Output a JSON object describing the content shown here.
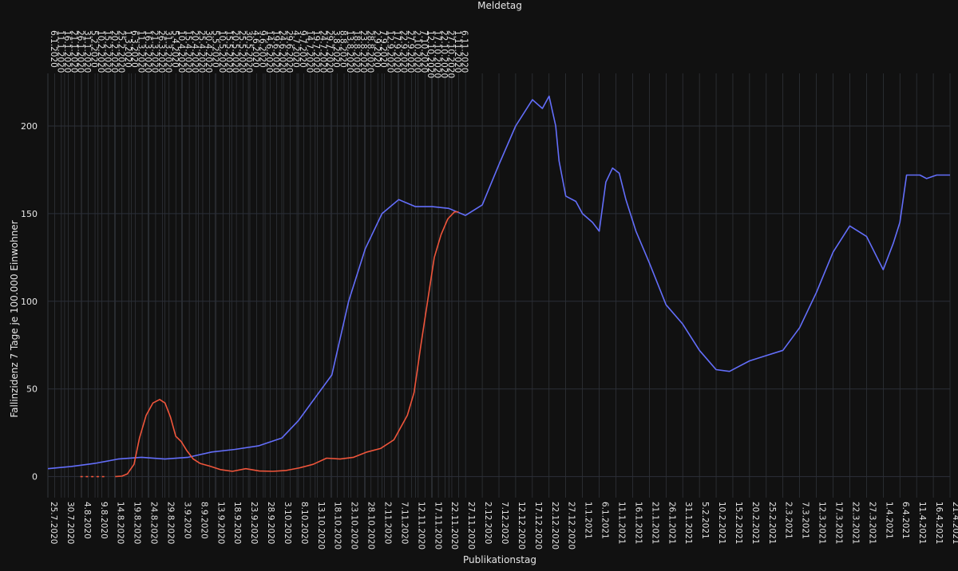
{
  "chart_data": {
    "type": "line",
    "title": "",
    "xlabel": "Publikationstag",
    "x2label": "Meldetag",
    "ylabel": "Fallinzidenz 7 Tage je 100.000 Einwohner",
    "ylim": [
      -12,
      230
    ],
    "yticks": [
      0,
      50,
      100,
      150,
      200
    ],
    "grid": true,
    "legend": "none",
    "background": "#111111",
    "x_bottom": {
      "start": "2020-07-25",
      "end": "2021-04-21",
      "ticks": [
        "25.7.2020",
        "30.7.2020",
        "4.8.2020",
        "9.8.2020",
        "14.8.2020",
        "19.8.2020",
        "24.8.2020",
        "29.8.2020",
        "3.9.2020",
        "8.9.2020",
        "13.9.2020",
        "18.9.2020",
        "23.9.2020",
        "28.9.2020",
        "3.10.2020",
        "8.10.2020",
        "13.10.2020",
        "18.10.2020",
        "23.10.2020",
        "28.10.2020",
        "2.11.2020",
        "7.11.2020",
        "12.11.2020",
        "17.11.2020",
        "22.11.2020",
        "27.11.2020",
        "2.12.2020",
        "7.12.2020",
        "12.12.2020",
        "17.12.2020",
        "22.12.2020",
        "27.12.2020",
        "1.1.2021",
        "6.1.2021",
        "11.1.2021",
        "16.1.2021",
        "21.1.2021",
        "26.1.2021",
        "31.1.2021",
        "5.2.2021",
        "10.2.2021",
        "15.2.2021",
        "20.2.2021",
        "25.2.2021",
        "2.3.2021",
        "7.3.2021",
        "12.3.2021",
        "17.3.2021",
        "22.3.2021",
        "27.3.2021",
        "1.4.2021",
        "6.4.2021",
        "11.4.2021",
        "16.4.2021",
        "21.4.2021"
      ]
    },
    "x_top": {
      "start": "2020-01-06",
      "end": "2021-11-06",
      "ticks": [
        "6.1.2020",
        "11.1.2020",
        "16.1.2020",
        "21.1.2020",
        "26.1.2020",
        "31.1.2020",
        "5.2.2020",
        "10.2.2020",
        "15.2.2020",
        "20.2.2020",
        "25.2.2020",
        "1.3.2020",
        "6.3.2020",
        "11.3.2020",
        "16.3.2020",
        "21.3.2020",
        "26.3.2020",
        "31.3.2020",
        "5.4.2020",
        "10.4.2020",
        "15.4.2020",
        "20.4.2020",
        "25.4.2020",
        "30.4.2020",
        "5.5.2020",
        "10.5.2020",
        "15.5.2020",
        "20.5.2020",
        "25.5.2020",
        "30.5.2020",
        "4.6.2020",
        "9.6.2020",
        "14.6.2020",
        "19.6.2020",
        "24.6.2020",
        "29.6.2020",
        "4.7.2020",
        "9.7.2020",
        "14.7.2020",
        "19.7.2020",
        "24.7.2020",
        "29.7.2020",
        "3.8.2020",
        "8.8.2020",
        "13.8.2020",
        "18.8.2020",
        "23.8.2020",
        "28.8.2020",
        "2.9.2020",
        "7.9.2020",
        "12.9.2020",
        "17.9.2020",
        "22.9.2020",
        "27.9.2020",
        "2.10.2020",
        "7.10.2020",
        "12.10.2020",
        "17.10.2020",
        "22.10.2020",
        "27.10.2020",
        "1.11.2020",
        "6.11.2020"
      ]
    },
    "series": [
      {
        "name": "",
        "axis": "bottom",
        "color": "#636efa",
        "x": [
          "2020-07-25",
          "2020-08-01",
          "2020-08-08",
          "2020-08-15",
          "2020-08-22",
          "2020-08-29",
          "2020-09-05",
          "2020-09-12",
          "2020-09-19",
          "2020-09-26",
          "2020-10-03",
          "2020-10-08",
          "2020-10-13",
          "2020-10-18",
          "2020-10-23",
          "2020-10-28",
          "2020-11-02",
          "2020-11-07",
          "2020-11-12",
          "2020-11-17",
          "2020-11-22",
          "2020-11-27",
          "2020-12-02",
          "2020-12-07",
          "2020-12-12",
          "2020-12-17",
          "2020-12-20",
          "2020-12-22",
          "2020-12-24",
          "2020-12-25",
          "2020-12-27",
          "2020-12-30",
          "2021-01-01",
          "2021-01-04",
          "2021-01-06",
          "2021-01-08",
          "2021-01-10",
          "2021-01-12",
          "2021-01-14",
          "2021-01-17",
          "2021-01-21",
          "2021-01-26",
          "2021-01-31",
          "2021-02-05",
          "2021-02-10",
          "2021-02-14",
          "2021-02-17",
          "2021-02-20",
          "2021-02-25",
          "2021-03-02",
          "2021-03-07",
          "2021-03-12",
          "2021-03-17",
          "2021-03-22",
          "2021-03-27",
          "2021-04-01",
          "2021-04-04",
          "2021-04-06",
          "2021-04-08",
          "2021-04-12",
          "2021-04-14",
          "2021-04-17",
          "2021-04-19",
          "2021-04-20",
          "2021-04-21"
        ],
        "y": [
          4.5,
          5.8,
          7.5,
          10.0,
          11.0,
          10.0,
          11.0,
          14.0,
          15.5,
          17.5,
          22.0,
          32.0,
          45.0,
          58.0,
          100.0,
          130.0,
          150.0,
          158.0,
          154.0,
          154.0,
          153.0,
          149.0,
          155.0,
          178.0,
          200.0,
          215.0,
          210.0,
          217.0,
          200.0,
          180.0,
          160.0,
          157.0,
          150.0,
          145.0,
          140.0,
          168.0,
          176.0,
          173.0,
          158.0,
          140.0,
          122.0,
          98.0,
          87.0,
          72.0,
          61.0,
          60.0,
          63.0,
          66.0,
          69.0,
          72.0,
          85.0,
          105.0,
          128.0,
          143.0,
          137.0,
          118.0,
          133.0,
          145.0,
          172.0,
          172.0,
          170.0,
          172.0,
          172.0,
          172.0,
          172.0
        ]
      },
      {
        "name": "",
        "axis": "top",
        "color": "#ef553b",
        "x": [
          "2020-02-25",
          "2020-03-01",
          "2020-03-05",
          "2020-03-10",
          "2020-03-14",
          "2020-03-19",
          "2020-03-24",
          "2020-03-29",
          "2020-04-02",
          "2020-04-06",
          "2020-04-10",
          "2020-04-14",
          "2020-04-18",
          "2020-04-23",
          "2020-04-28",
          "2020-05-05",
          "2020-05-13",
          "2020-05-22",
          "2020-06-01",
          "2020-06-11",
          "2020-06-21",
          "2020-07-01",
          "2020-07-11",
          "2020-07-21",
          "2020-07-31",
          "2020-08-10",
          "2020-08-20",
          "2020-08-30",
          "2020-09-09",
          "2020-09-19",
          "2020-09-29",
          "2020-10-04",
          "2020-10-09",
          "2020-10-14",
          "2020-10-19",
          "2020-10-24",
          "2020-10-29",
          "2020-11-03",
          "2020-11-06"
        ],
        "y": [
          0.0,
          0.3,
          1.5,
          7.0,
          22.0,
          35.0,
          42.0,
          44.0,
          42.0,
          34.0,
          23.0,
          20.0,
          15.0,
          10.0,
          7.5,
          6.0,
          4.0,
          3.0,
          4.5,
          3.2,
          3.0,
          3.5,
          5.0,
          7.0,
          10.5,
          10.0,
          11.0,
          14.0,
          16.0,
          21.0,
          35.0,
          48.0,
          75.0,
          100.0,
          125.0,
          138.0,
          147.0,
          151.0,
          151.0
        ]
      }
    ],
    "series_dotted": {
      "axis": "top",
      "color": "#ef553b",
      "x": [
        "2020-01-31",
        "2020-02-04",
        "2020-02-08",
        "2020-02-12",
        "2020-02-16"
      ],
      "y": [
        0,
        0,
        0,
        0,
        0
      ]
    }
  }
}
